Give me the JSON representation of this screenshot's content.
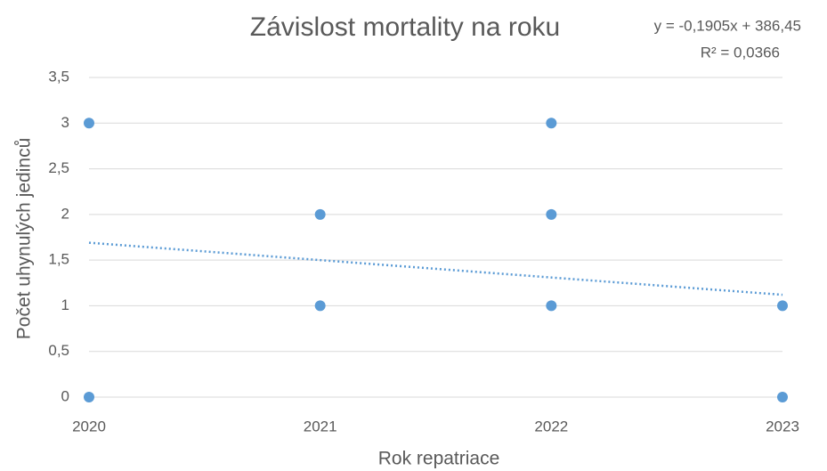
{
  "chart_data": {
    "type": "scatter",
    "title": "Závislost mortality na roku",
    "annotations": [
      "y = -0,1905x + 386,45",
      "R² = 0,0366"
    ],
    "xlabel": "Rok repatriace",
    "ylabel": "Počet uhynulých jedinců",
    "series": [
      {
        "color": "#5b9bd5",
        "x": [
          2020,
          2020,
          2021,
          2021,
          2022,
          2022,
          2022,
          2023,
          2023
        ],
        "values": [
          3,
          0,
          2,
          1,
          3,
          2,
          1,
          1,
          0
        ]
      }
    ],
    "trendline": {
      "color": "#5b9bd5",
      "x": [
        2020,
        2023
      ],
      "values": [
        1.69,
        1.12
      ]
    },
    "xlim": [
      2020,
      2023
    ],
    "xticks": [
      2020,
      2021,
      2022,
      2023
    ],
    "ylim": [
      0,
      3.5
    ],
    "yticks": [
      0,
      {
        "value": 0.5,
        "label": "0,5"
      },
      1,
      {
        "value": 1.5,
        "label": "1,5"
      },
      2,
      {
        "value": 2.5,
        "label": "2,5"
      },
      3,
      {
        "value": 3.5,
        "label": "3,5"
      }
    ],
    "grid": true
  }
}
